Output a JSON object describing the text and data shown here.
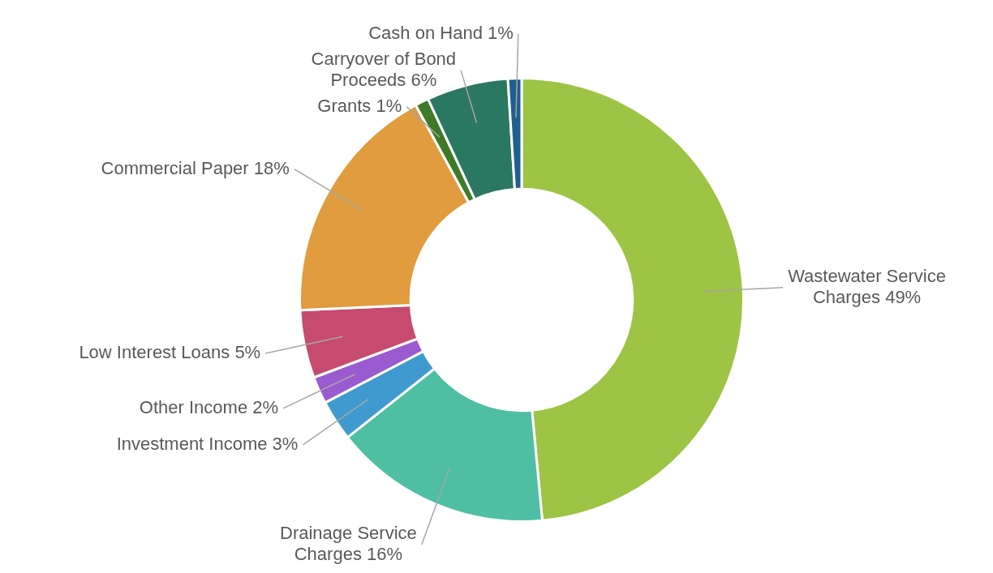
{
  "chart_data": {
    "type": "donut",
    "categories": [
      "Wastewater Service Charges",
      "Drainage Service Charges",
      "Investment Income",
      "Other Income",
      "Low Interest Loans",
      "Commercial Paper",
      "Grants",
      "Carryover of Bond Proceeds",
      "Cash on Hand"
    ],
    "values": [
      49,
      16,
      3,
      2,
      5,
      18,
      1,
      6,
      1
    ],
    "value_labels": [
      "49%",
      "16%",
      "3%",
      "2%",
      "5%",
      "18%",
      "1%",
      "6%",
      "1%"
    ],
    "colors": [
      "#9dc444",
      "#4fbfa3",
      "#3f9bcf",
      "#9a5bd0",
      "#c74b6e",
      "#e09c3e",
      "#3d7a2a",
      "#2a7762",
      "#1f5f8f"
    ],
    "legend": false
  }
}
